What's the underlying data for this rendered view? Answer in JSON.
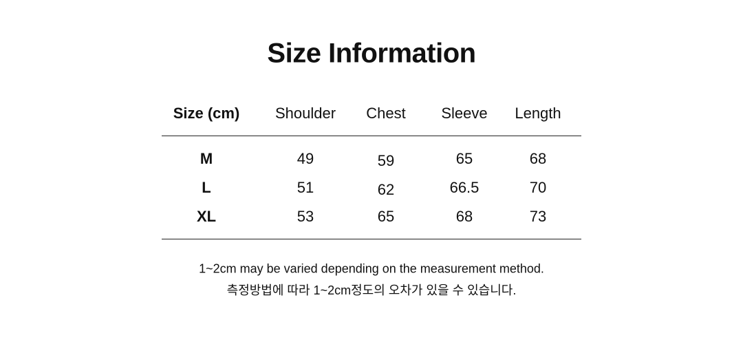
{
  "title": "Size Information",
  "table": {
    "headers": [
      "Size (cm)",
      "Shoulder",
      "Chest",
      "Sleeve",
      "Length"
    ],
    "rows": [
      [
        "M",
        "49",
        "59",
        "65",
        "68"
      ],
      [
        "L",
        "51",
        "62",
        "66.5",
        "70"
      ],
      [
        "XL",
        "53",
        "65",
        "68",
        "73"
      ]
    ]
  },
  "notes": {
    "english": "1~2cm may be varied depending on the measurement method.",
    "korean": "측정방법에 따라 1~2cm정도의 오차가 있을 수 있습니다."
  }
}
